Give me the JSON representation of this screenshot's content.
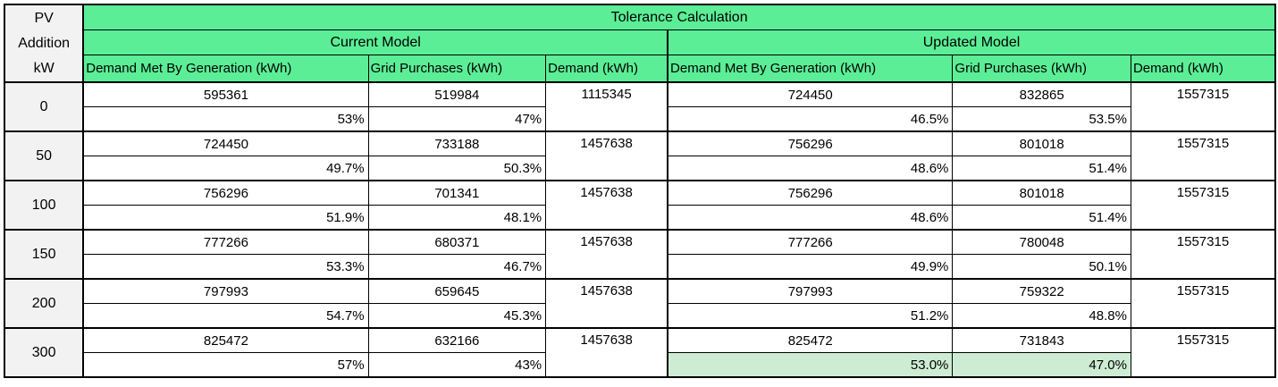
{
  "colors": {
    "header_green": "#5BEE96",
    "highlight_green": "#CDECD3",
    "pv_column_gray": "#F2F2F2",
    "border_black": "#000000"
  },
  "header": {
    "pv": {
      "lines": [
        "PV",
        "Addition",
        "kW"
      ]
    },
    "title": "Tolerance Calculation",
    "current_model": "Current Model",
    "updated_model": "Updated Model",
    "columns": {
      "dmbg": "Demand Met By Generation (kWh)",
      "grid": "Grid Purchases (kWh)",
      "demand": "Demand (kWh)"
    }
  },
  "rows": [
    {
      "pv": "0",
      "cur": {
        "dmbg": "595361",
        "dmbg_pct": "53%",
        "grid": "519984",
        "grid_pct": "47%",
        "demand": "1115345"
      },
      "upd": {
        "dmbg": "724450",
        "dmbg_pct": "46.5%",
        "grid": "832865",
        "grid_pct": "53.5%",
        "demand": "1557315"
      }
    },
    {
      "pv": "50",
      "cur": {
        "dmbg": "724450",
        "dmbg_pct": "49.7%",
        "grid": "733188",
        "grid_pct": "50.3%",
        "demand": "1457638"
      },
      "upd": {
        "dmbg": "756296",
        "dmbg_pct": "48.6%",
        "grid": "801018",
        "grid_pct": "51.4%",
        "demand": "1557315"
      }
    },
    {
      "pv": "100",
      "cur": {
        "dmbg": "756296",
        "dmbg_pct": "51.9%",
        "grid": "701341",
        "grid_pct": "48.1%",
        "demand": "1457638"
      },
      "upd": {
        "dmbg": "756296",
        "dmbg_pct": "48.6%",
        "grid": "801018",
        "grid_pct": "51.4%",
        "demand": "1557315"
      }
    },
    {
      "pv": "150",
      "cur": {
        "dmbg": "777266",
        "dmbg_pct": "53.3%",
        "grid": "680371",
        "grid_pct": "46.7%",
        "demand": "1457638"
      },
      "upd": {
        "dmbg": "777266",
        "dmbg_pct": "49.9%",
        "grid": "780048",
        "grid_pct": "50.1%",
        "demand": "1557315"
      }
    },
    {
      "pv": "200",
      "cur": {
        "dmbg": "797993",
        "dmbg_pct": "54.7%",
        "grid": "659645",
        "grid_pct": "45.3%",
        "demand": "1457638"
      },
      "upd": {
        "dmbg": "797993",
        "dmbg_pct": "51.2%",
        "grid": "759322",
        "grid_pct": "48.8%",
        "demand": "1557315"
      }
    },
    {
      "pv": "300",
      "cur": {
        "dmbg": "825472",
        "dmbg_pct": "57%",
        "grid": "632166",
        "grid_pct": "43%",
        "demand": "1457638"
      },
      "upd": {
        "dmbg": "825472",
        "dmbg_pct": "53.0%",
        "grid": "731843",
        "grid_pct": "47.0%",
        "demand": "1557315",
        "highlight": true
      }
    }
  ]
}
